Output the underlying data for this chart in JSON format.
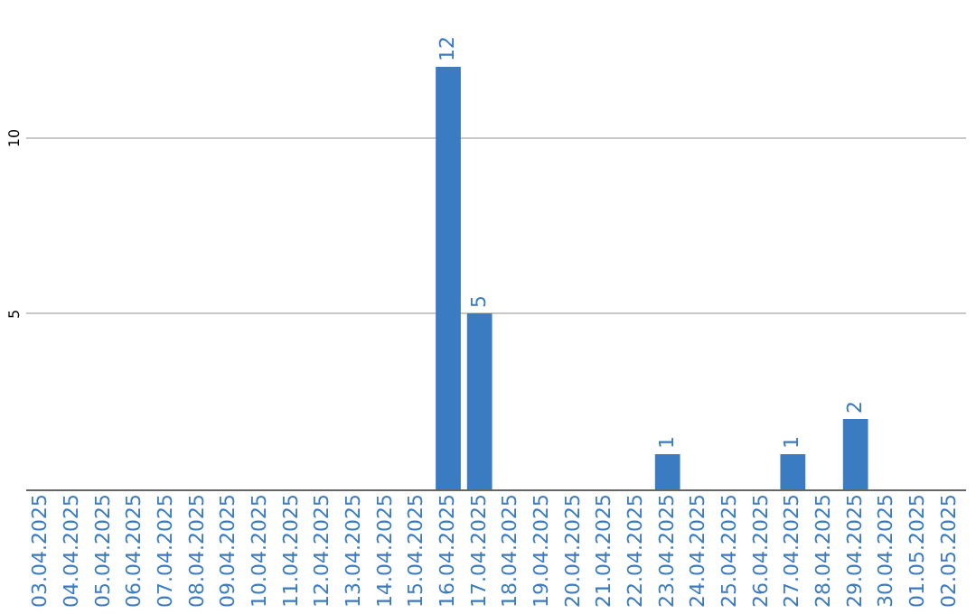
{
  "chart_data": {
    "type": "bar",
    "categories": [
      "03.04.2025",
      "04.04.2025",
      "05.04.2025",
      "06.04.2025",
      "07.04.2025",
      "08.04.2025",
      "09.04.2025",
      "10.04.2025",
      "11.04.2025",
      "12.04.2025",
      "13.04.2025",
      "14.04.2025",
      "15.04.2025",
      "16.04.2025",
      "17.04.2025",
      "18.04.2025",
      "19.04.2025",
      "20.04.2025",
      "21.04.2025",
      "22.04.2025",
      "23.04.2025",
      "24.04.2025",
      "25.04.2025",
      "26.04.2025",
      "27.04.2025",
      "28.04.2025",
      "29.04.2025",
      "30.04.2025",
      "01.05.2025",
      "02.05.2025"
    ],
    "values": [
      0,
      0,
      0,
      0,
      0,
      0,
      0,
      0,
      0,
      0,
      0,
      0,
      0,
      12,
      5,
      0,
      0,
      0,
      0,
      0,
      1,
      0,
      0,
      0,
      1,
      0,
      2,
      0,
      0,
      0
    ],
    "color": "#3a7bc2",
    "value_labels": [
      null,
      null,
      null,
      null,
      null,
      null,
      null,
      null,
      null,
      null,
      null,
      null,
      null,
      "12",
      "5",
      null,
      null,
      null,
      null,
      null,
      "1",
      null,
      null,
      null,
      "1",
      null,
      "2",
      null,
      null,
      null
    ],
    "ylim": [
      0,
      12
    ],
    "yticks": [
      5,
      10
    ],
    "grid": "y"
  }
}
